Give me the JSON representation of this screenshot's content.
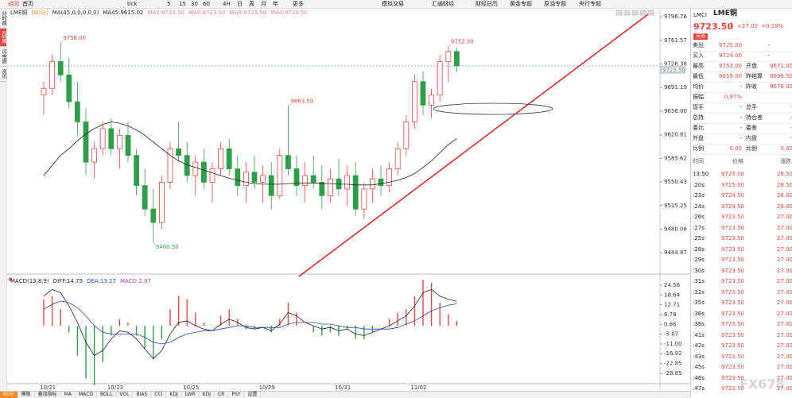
{
  "toolbar": [
    "返回",
    "首页",
    "tick",
    "5",
    "15",
    "30",
    "60",
    "4H",
    "日",
    "周",
    "月",
    "年",
    "更多",
    "模拟交易",
    "汇通财经",
    "财经日历",
    "黄金专题",
    "原油专题",
    "央行专题"
  ],
  "sidebar": [
    "分时图",
    "K线图",
    "闪电图",
    "资讯"
  ],
  "bottom_tabs": [
    "60分",
    "模板",
    "叠加指标",
    "MA",
    "MACD",
    "BOLL",
    "VOL",
    "BIAS",
    "CCI",
    "KDJ",
    "LWR",
    "KDJ",
    "CR",
    "PSY",
    "设置"
  ],
  "watermark": "FX678",
  "chart_data": [
    {
      "type": "candlestick",
      "header": [
        "LME铜",
        "[60分]",
        "MA(45,0,0,0,0,0)",
        "MA45:9615.02",
        "MA0:9723.50",
        "MA0:9723.50",
        "MA0:9723.50",
        "MA0:9723.50"
      ],
      "categories": [
        "10/21",
        null,
        null,
        null,
        null,
        null,
        null,
        null,
        "10/23",
        null,
        null,
        null,
        null,
        null,
        null,
        null,
        null,
        "10/25",
        null,
        null,
        null,
        null,
        null,
        null,
        null,
        null,
        "10/29",
        null,
        null,
        null,
        null,
        null,
        null,
        null,
        null,
        "10/31",
        null,
        null,
        null,
        null,
        null,
        null,
        null,
        null,
        "11/02",
        null,
        null,
        null,
        null,
        null
      ],
      "open": [
        9680,
        9690,
        9730,
        9710,
        9670,
        9640,
        9580,
        9600,
        9630,
        9600,
        9620,
        9590,
        9545,
        9510,
        9490,
        9550,
        9600,
        9590,
        9560,
        9580,
        9550,
        9570,
        9600,
        9570,
        9545,
        9565,
        9550,
        9560,
        9530,
        9590,
        9570,
        9545,
        9560,
        9550,
        9530,
        9555,
        9540,
        9560,
        9510,
        9540,
        9555,
        9545,
        9570,
        9600,
        9640,
        9700,
        9665,
        9680,
        9730,
        9745
      ],
      "high": [
        9700,
        9740,
        9758,
        9735,
        9700,
        9660,
        9610,
        9640,
        9645,
        9630,
        9640,
        9600,
        9570,
        9540,
        9560,
        9610,
        9640,
        9610,
        9590,
        9600,
        9580,
        9610,
        9615,
        9590,
        9580,
        9590,
        9575,
        9580,
        9600,
        9663.5,
        9590,
        9580,
        9590,
        9575,
        9570,
        9585,
        9575,
        9580,
        9550,
        9570,
        9575,
        9580,
        9610,
        9650,
        9710,
        9715,
        9690,
        9740,
        9752.5,
        9750
      ],
      "low": [
        9650,
        9680,
        9700,
        9660,
        9620,
        9560,
        9555,
        9590,
        9590,
        9570,
        9580,
        9530,
        9500,
        9460.5,
        9480,
        9540,
        9580,
        9550,
        9530,
        9540,
        9520,
        9560,
        9560,
        9530,
        9520,
        9540,
        9520,
        9510,
        9525,
        9560,
        9530,
        9520,
        9540,
        9510,
        9520,
        9530,
        9515,
        9500,
        9495,
        9520,
        9530,
        9535,
        9560,
        9590,
        9630,
        9650,
        9645,
        9670,
        9700,
        9715
      ],
      "close": [
        9690,
        9730,
        9710,
        9670,
        9640,
        9580,
        9600,
        9630,
        9600,
        9620,
        9590,
        9545,
        9510,
        9490,
        9550,
        9600,
        9590,
        9560,
        9580,
        9550,
        9570,
        9600,
        9570,
        9545,
        9565,
        9550,
        9560,
        9530,
        9590,
        9570,
        9545,
        9560,
        9550,
        9530,
        9555,
        9540,
        9560,
        9510,
        9540,
        9555,
        9545,
        9570,
        9600,
        9640,
        9700,
        9665,
        9680,
        9730,
        9745,
        9723.5
      ],
      "ma": [
        9560,
        9575,
        9590,
        9600,
        9612,
        9622,
        9630,
        9636,
        9640,
        9638,
        9634,
        9628,
        9620,
        9610,
        9600,
        9590,
        9582,
        9576,
        9572,
        9568,
        9564,
        9560,
        9556,
        9553,
        9550,
        9548,
        9547,
        9547,
        9547,
        9548,
        9549,
        9549,
        9549,
        9548,
        9548,
        9547,
        9547,
        9546,
        9546,
        9546,
        9548,
        9550,
        9553,
        9557,
        9563,
        9572,
        9582,
        9594,
        9606,
        9615
      ],
      "up_color": "#e8473f",
      "down_color": "#2e9e48",
      "ma_color": "#222222",
      "ylim": [
        9419,
        9804
      ],
      "yticks": [
        9796.76,
        9761.57,
        9726.38,
        9691.19,
        {
          "value": 9656,
          "label": "9656.00"
        },
        9620.81,
        9585.62,
        9550.43,
        9515.25,
        9480.06,
        9444.87
      ],
      "last_price": {
        "value": 9723.5,
        "label": "9723.50"
      },
      "annotations": [
        {
          "value": 9758,
          "label": "9758.00"
        },
        {
          "value": 9460.5,
          "label": "9460.50"
        },
        {
          "value": 9663.5,
          "label": "9663.50"
        },
        {
          "value": 9752.5,
          "label": "9752.50"
        }
      ]
    },
    {
      "type": "macd",
      "header": [
        "MACD(13,8,9)",
        "DIFF:14.75",
        "DEA:13.27",
        "MACD:2.97"
      ],
      "dif": [
        18,
        22,
        20,
        12,
        2,
        -10,
        -18,
        -15,
        -8,
        -3,
        -4,
        -8,
        -14,
        -20,
        -15,
        -5,
        2,
        3,
        0,
        -2,
        -3,
        1,
        4,
        2,
        -1,
        -2,
        -1,
        -3,
        1,
        8,
        6,
        2,
        0,
        -2,
        -1,
        -3,
        -2,
        -5,
        -6,
        -4,
        -2,
        0,
        3,
        6,
        12,
        20,
        22,
        18,
        16,
        14.75
      ],
      "dea": [
        10,
        13,
        15,
        14,
        11,
        6,
        0,
        -4,
        -5,
        -5,
        -5,
        -5,
        -7,
        -10,
        -11,
        -10,
        -7,
        -5,
        -4,
        -3,
        -3,
        -2,
        -1,
        0,
        0,
        -1,
        -1,
        -1,
        -1,
        1,
        2,
        2,
        2,
        1,
        1,
        0,
        -1,
        -1,
        -2,
        -2,
        -2,
        -2,
        -1,
        1,
        3,
        6,
        9,
        11,
        12.5,
        13.27
      ],
      "hist": [
        16,
        18,
        10,
        -4,
        -18,
        -32,
        -36,
        -22,
        -6,
        4,
        2,
        -6,
        -14,
        -20,
        -8,
        10,
        18,
        16,
        8,
        2,
        0,
        6,
        10,
        4,
        -2,
        -2,
        0,
        -4,
        4,
        14,
        8,
        0,
        -4,
        -6,
        -4,
        -6,
        -2,
        -8,
        -8,
        -4,
        0,
        4,
        8,
        10,
        18,
        28,
        26,
        14,
        7,
        2.97
      ],
      "dif_color": "#222222",
      "dea_color": "#2244cc",
      "up_color": "#e8473f",
      "down_color": "#2e9e48",
      "ylim": [
        -34.6,
        28.9
      ],
      "yticks": [
        24.56,
        18.64,
        12.71,
        6.78,
        0.86,
        -5.07,
        {
          "value": -11,
          "label": "-11.00"
        },
        -16.92,
        -22.85,
        -28.85
      ]
    }
  ],
  "quote": {
    "symbol": "LMCI",
    "name": "LME铜",
    "price": "9723.50",
    "change": "+27.00",
    "pct": "+0.28%",
    "button": "自选",
    "rows": [
      [
        "卖出",
        "9725.00",
        "-"
      ],
      [
        "买入",
        "9724.00",
        "-"
      ],
      [
        "最高",
        "9753.00",
        "开盘",
        "9671.00"
      ],
      [
        "最低",
        "9659.00",
        "昨结算",
        "9696.50"
      ],
      [
        "均价",
        "-",
        "昨收",
        "9676.00"
      ],
      [
        "振幅",
        "0.97%"
      ],
      [
        "现手",
        "-",
        "总手",
        "-"
      ],
      [
        "总持",
        "-",
        "持仓差",
        "-"
      ],
      [
        "委比",
        "-",
        "委差",
        "-"
      ],
      [
        "外盘",
        "-",
        "内盘",
        "-"
      ],
      [
        "比例",
        "0.00",
        "比例",
        "0.00"
      ]
    ]
  },
  "trades": {
    "header": [
      "时间",
      "价格",
      "涨跌"
    ],
    "rows": [
      [
        "13:50",
        "9725.00",
        "28.50"
      ],
      [
        ":20s",
        "9725.00",
        "28.50"
      ],
      [
        ":23s",
        "9724.50",
        "28.00"
      ],
      [
        ":24s",
        "9724.50",
        "28.00"
      ],
      [
        ":26s",
        "9723.50",
        "27.00"
      ],
      [
        ":27s",
        "9723.50",
        "27.00"
      ],
      [
        ":25s",
        "9723.50",
        "27.00"
      ],
      [
        ":28s",
        "9723.50",
        "27.00"
      ],
      [
        ":29s",
        "9723.50",
        "27.00"
      ],
      [
        ":30s",
        "9723.50",
        "27.00"
      ],
      [
        ":31s",
        "9723.50",
        "27.00"
      ],
      [
        ":32s",
        "9723.50",
        "27.00"
      ],
      [
        ":35s",
        "9723.50",
        "27.00"
      ],
      [
        ":36s",
        "9723.50",
        "27.00"
      ],
      [
        ":38s",
        "9723.50",
        "27.00"
      ],
      [
        ":41s",
        "9723.50",
        "27.00"
      ],
      [
        ":42s",
        "9723.50",
        "27.00"
      ],
      [
        ":43s",
        "9723.50",
        "27.00"
      ],
      [
        ":45s",
        "9723.50",
        "27.00"
      ],
      [
        ":46s",
        "9723.50",
        "27.00"
      ],
      [
        ":47s",
        "9723.50",
        "27.00"
      ]
    ]
  }
}
